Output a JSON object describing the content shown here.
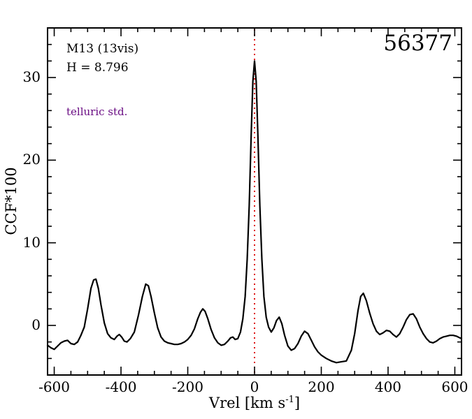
{
  "chart_data": {
    "type": "line",
    "title": "",
    "xlabel_main": "Vrel [km s",
    "xlabel_sup": "-1",
    "xlabel_close": "]",
    "ylabel": "CCF*100",
    "xlim": [
      -620,
      620
    ],
    "ylim": [
      -6,
      36
    ],
    "x_major_ticks": [
      -600,
      -400,
      -200,
      0,
      200,
      400,
      600
    ],
    "x_minor_step": 50,
    "y_major_ticks": [
      0,
      10,
      20,
      30
    ],
    "y_minor_step": 2,
    "grid": false,
    "legend": "none",
    "ref_line_x": 0,
    "annotations": {
      "target": "M13 (13vis)",
      "h_magnitude": "H = 8.796",
      "telluric": "telluric std.",
      "star_id": "56377"
    },
    "colors": {
      "curve": "#000000",
      "ref_line": "#dd1111",
      "telluric_text": "#6a0d83",
      "frame": "#000000"
    },
    "series": [
      {
        "name": "ccf",
        "x": [
          -620,
          -610,
          -600,
          -590,
          -580,
          -570,
          -560,
          -550,
          -540,
          -530,
          -520,
          -510,
          -500,
          -490,
          -482,
          -475,
          -468,
          -460,
          -450,
          -440,
          -430,
          -420,
          -412,
          -405,
          -398,
          -390,
          -382,
          -372,
          -360,
          -348,
          -336,
          -326,
          -318,
          -310,
          -300,
          -290,
          -280,
          -270,
          -260,
          -250,
          -240,
          -230,
          -220,
          -210,
          -200,
          -190,
          -180,
          -170,
          -162,
          -155,
          -148,
          -140,
          -130,
          -120,
          -110,
          -100,
          -90,
          -80,
          -72,
          -65,
          -58,
          -50,
          -42,
          -35,
          -28,
          -22,
          -16,
          -10,
          -5,
          0,
          5,
          10,
          16,
          22,
          28,
          35,
          42,
          50,
          58,
          66,
          74,
          82,
          90,
          100,
          110,
          120,
          130,
          140,
          150,
          160,
          170,
          180,
          190,
          200,
          215,
          230,
          245,
          260,
          275,
          290,
          300,
          310,
          318,
          326,
          335,
          345,
          355,
          365,
          375,
          385,
          395,
          405,
          415,
          425,
          435,
          445,
          455,
          465,
          475,
          485,
          495,
          505,
          515,
          525,
          535,
          545,
          555,
          565,
          575,
          585,
          595,
          605,
          615,
          620
        ],
        "y": [
          -2.4,
          -2.7,
          -2.9,
          -2.5,
          -2.1,
          -1.9,
          -1.8,
          -2.2,
          -2.3,
          -2.0,
          -1.2,
          -0.2,
          2.0,
          4.5,
          5.5,
          5.6,
          4.5,
          2.5,
          0.3,
          -1.0,
          -1.5,
          -1.7,
          -1.3,
          -1.1,
          -1.4,
          -1.9,
          -2.0,
          -1.6,
          -0.8,
          1.2,
          3.5,
          5.0,
          4.8,
          3.5,
          1.5,
          -0.3,
          -1.4,
          -1.9,
          -2.1,
          -2.2,
          -2.3,
          -2.3,
          -2.2,
          -2.0,
          -1.7,
          -1.2,
          -0.4,
          0.8,
          1.6,
          2.0,
          1.7,
          0.8,
          -0.5,
          -1.5,
          -2.1,
          -2.4,
          -2.3,
          -1.9,
          -1.5,
          -1.4,
          -1.7,
          -1.6,
          -0.8,
          0.8,
          3.5,
          8.0,
          14.5,
          23.0,
          29.5,
          32.0,
          29.5,
          23.0,
          14.5,
          8.0,
          3.5,
          1.0,
          -0.2,
          -0.8,
          -0.3,
          0.6,
          1.0,
          0.2,
          -1.2,
          -2.5,
          -3.0,
          -2.8,
          -2.2,
          -1.3,
          -0.7,
          -1.0,
          -1.8,
          -2.6,
          -3.2,
          -3.6,
          -4.0,
          -4.3,
          -4.5,
          -4.4,
          -4.3,
          -3.0,
          -1.0,
          1.8,
          3.5,
          3.9,
          3.0,
          1.5,
          0.2,
          -0.7,
          -1.1,
          -0.9,
          -0.6,
          -0.7,
          -1.1,
          -1.4,
          -1.0,
          -0.2,
          0.7,
          1.3,
          1.4,
          0.8,
          -0.2,
          -1.0,
          -1.6,
          -2.0,
          -2.1,
          -1.9,
          -1.6,
          -1.4,
          -1.3,
          -1.2,
          -1.2,
          -1.3,
          -1.5,
          -1.6
        ]
      }
    ]
  }
}
